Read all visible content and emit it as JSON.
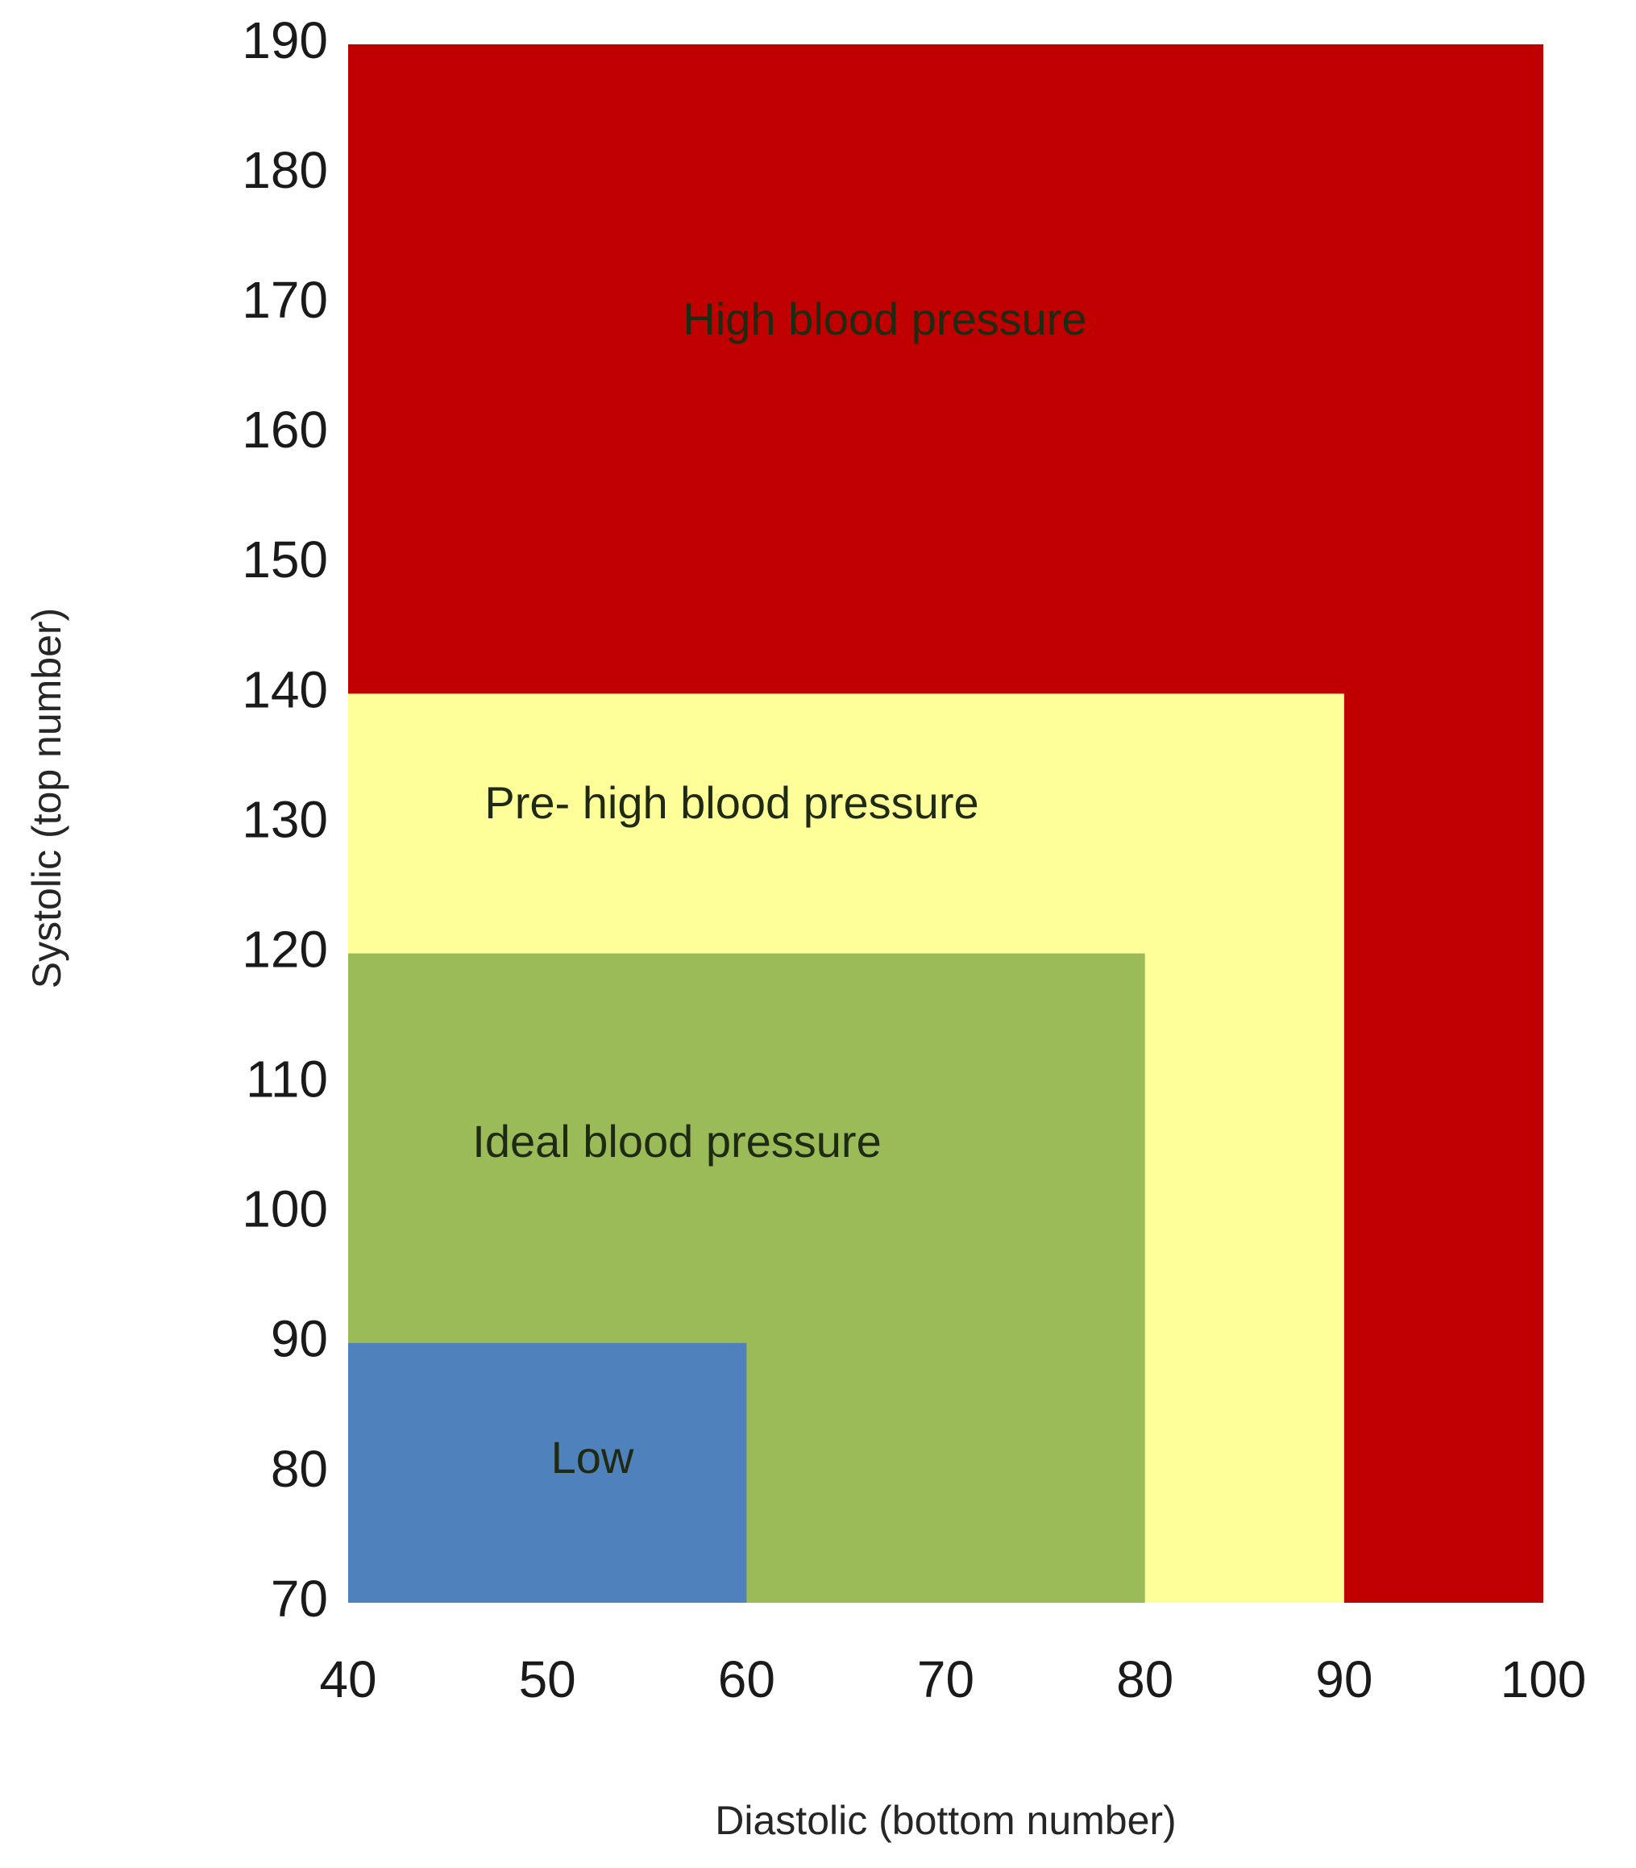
{
  "chart_data": {
    "type": "area",
    "xlabel": "Diastolic (bottom number)",
    "ylabel": "Systolic (top number)",
    "xlim": [
      40,
      100
    ],
    "ylim": [
      70,
      190
    ],
    "x_ticks": [
      "40",
      "50",
      "60",
      "70",
      "80",
      "90",
      "100"
    ],
    "y_ticks": [
      "190",
      "180",
      "170",
      "160",
      "150",
      "140",
      "130",
      "120",
      "110",
      "100",
      "90",
      "80",
      "70"
    ],
    "grid": false,
    "legend": "none",
    "regions": [
      {
        "name": "High blood pressure",
        "x_range": [
          40,
          100
        ],
        "y_range": [
          70,
          190
        ],
        "color": "#C00000"
      },
      {
        "name": "Pre- high blood pressure",
        "x_range": [
          40,
          90
        ],
        "y_range": [
          70,
          140
        ],
        "color": "#FFFF99"
      },
      {
        "name": "Ideal blood pressure",
        "x_range": [
          40,
          80
        ],
        "y_range": [
          70,
          120
        ],
        "color": "#9BBB59"
      },
      {
        "name": "Low",
        "x_range": [
          40,
          60
        ],
        "y_range": [
          70,
          90
        ],
        "color": "#4F81BD"
      }
    ]
  }
}
